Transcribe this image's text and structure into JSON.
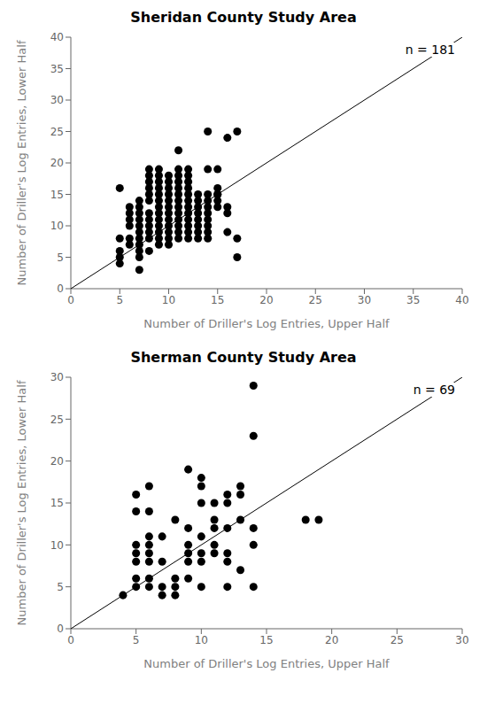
{
  "chart_data": [
    {
      "type": "scatter",
      "title": "Sheridan County Study Area",
      "x_label": "Number of Driller's Log Entries, Upper Half",
      "y_label": "Number of Driller's Log Entries, Lower Half",
      "annotation": "n = 181",
      "xlim": [
        0,
        40
      ],
      "ylim": [
        0,
        40
      ],
      "xticks": [
        0,
        5,
        10,
        15,
        20,
        25,
        30,
        35,
        40
      ],
      "yticks": [
        0,
        5,
        10,
        15,
        20,
        25,
        30,
        35,
        40
      ],
      "grid": false,
      "series": [
        {
          "type": "line",
          "color": "#000000",
          "x": [
            0,
            40
          ],
          "values": [
            0,
            40
          ]
        },
        {
          "type": "scatter",
          "color": "#000000",
          "x": [
            5,
            5,
            5,
            5,
            5,
            6,
            6,
            6,
            6,
            6,
            6,
            7,
            7,
            7,
            7,
            7,
            7,
            7,
            7,
            7,
            7,
            7,
            8,
            8,
            8,
            8,
            8,
            8,
            8,
            8,
            8,
            8,
            8,
            8,
            9,
            9,
            9,
            9,
            9,
            9,
            9,
            9,
            9,
            9,
            9,
            9,
            9,
            10,
            10,
            10,
            10,
            10,
            10,
            10,
            10,
            10,
            10,
            10,
            10,
            11,
            11,
            11,
            11,
            11,
            11,
            11,
            11,
            11,
            11,
            11,
            11,
            11,
            12,
            12,
            12,
            12,
            12,
            12,
            12,
            12,
            12,
            12,
            12,
            12,
            13,
            13,
            13,
            13,
            13,
            13,
            13,
            13,
            14,
            14,
            14,
            14,
            14,
            14,
            14,
            14,
            14,
            15,
            15,
            15,
            15,
            15,
            16,
            16,
            16,
            17,
            17,
            14,
            15,
            16,
            17
          ],
          "values": [
            4,
            5,
            6,
            8,
            16,
            7,
            8,
            10,
            11,
            12,
            13,
            3,
            5,
            6,
            7,
            8,
            9,
            10,
            11,
            12,
            13,
            14,
            8,
            9,
            10,
            11,
            12,
            14,
            15,
            16,
            17,
            18,
            19,
            6,
            7,
            8,
            9,
            10,
            11,
            12,
            13,
            14,
            15,
            16,
            17,
            18,
            19,
            7,
            8,
            9,
            10,
            11,
            12,
            13,
            14,
            15,
            16,
            17,
            18,
            8,
            9,
            10,
            11,
            12,
            13,
            14,
            15,
            16,
            17,
            18,
            19,
            22,
            8,
            9,
            10,
            11,
            12,
            13,
            14,
            15,
            16,
            17,
            18,
            19,
            8,
            9,
            10,
            11,
            12,
            13,
            14,
            15,
            19,
            8,
            9,
            10,
            11,
            12,
            13,
            14,
            15,
            13,
            14,
            15,
            16,
            19,
            9,
            12,
            13,
            8,
            5,
            25,
            15,
            24,
            25
          ]
        }
      ]
    },
    {
      "type": "scatter",
      "title": "Sherman County Study Area",
      "x_label": "Number of Driller's Log Entries, Upper Half",
      "y_label": "Number of Driller's Log Entries, Lower Half",
      "annotation": "n = 69",
      "xlim": [
        0,
        30
      ],
      "ylim": [
        0,
        30
      ],
      "xticks": [
        0,
        5,
        10,
        15,
        20,
        25,
        30
      ],
      "yticks": [
        0,
        5,
        10,
        15,
        20,
        25,
        30
      ],
      "grid": false,
      "series": [
        {
          "type": "line",
          "color": "#000000",
          "x": [
            0,
            30
          ],
          "values": [
            0,
            30
          ]
        },
        {
          "type": "scatter",
          "color": "#000000",
          "x": [
            4,
            5,
            5,
            5,
            5,
            5,
            5,
            5,
            6,
            6,
            6,
            6,
            6,
            6,
            6,
            6,
            7,
            7,
            7,
            7,
            8,
            8,
            8,
            8,
            9,
            9,
            9,
            9,
            9,
            9,
            10,
            10,
            10,
            10,
            10,
            10,
            10,
            11,
            11,
            11,
            11,
            11,
            12,
            12,
            12,
            12,
            12,
            12,
            13,
            13,
            13,
            13,
            14,
            14,
            14,
            14,
            14,
            18,
            19
          ],
          "values": [
            4,
            5,
            6,
            8,
            9,
            10,
            14,
            16,
            5,
            6,
            8,
            9,
            11,
            14,
            17,
            10,
            4,
            5,
            8,
            11,
            4,
            5,
            6,
            13,
            6,
            8,
            9,
            10,
            12,
            19,
            5,
            8,
            9,
            11,
            15,
            17,
            18,
            9,
            10,
            12,
            13,
            15,
            5,
            8,
            9,
            12,
            15,
            16,
            7,
            13,
            16,
            17,
            23,
            5,
            10,
            12,
            29,
            13,
            13
          ]
        }
      ]
    }
  ]
}
